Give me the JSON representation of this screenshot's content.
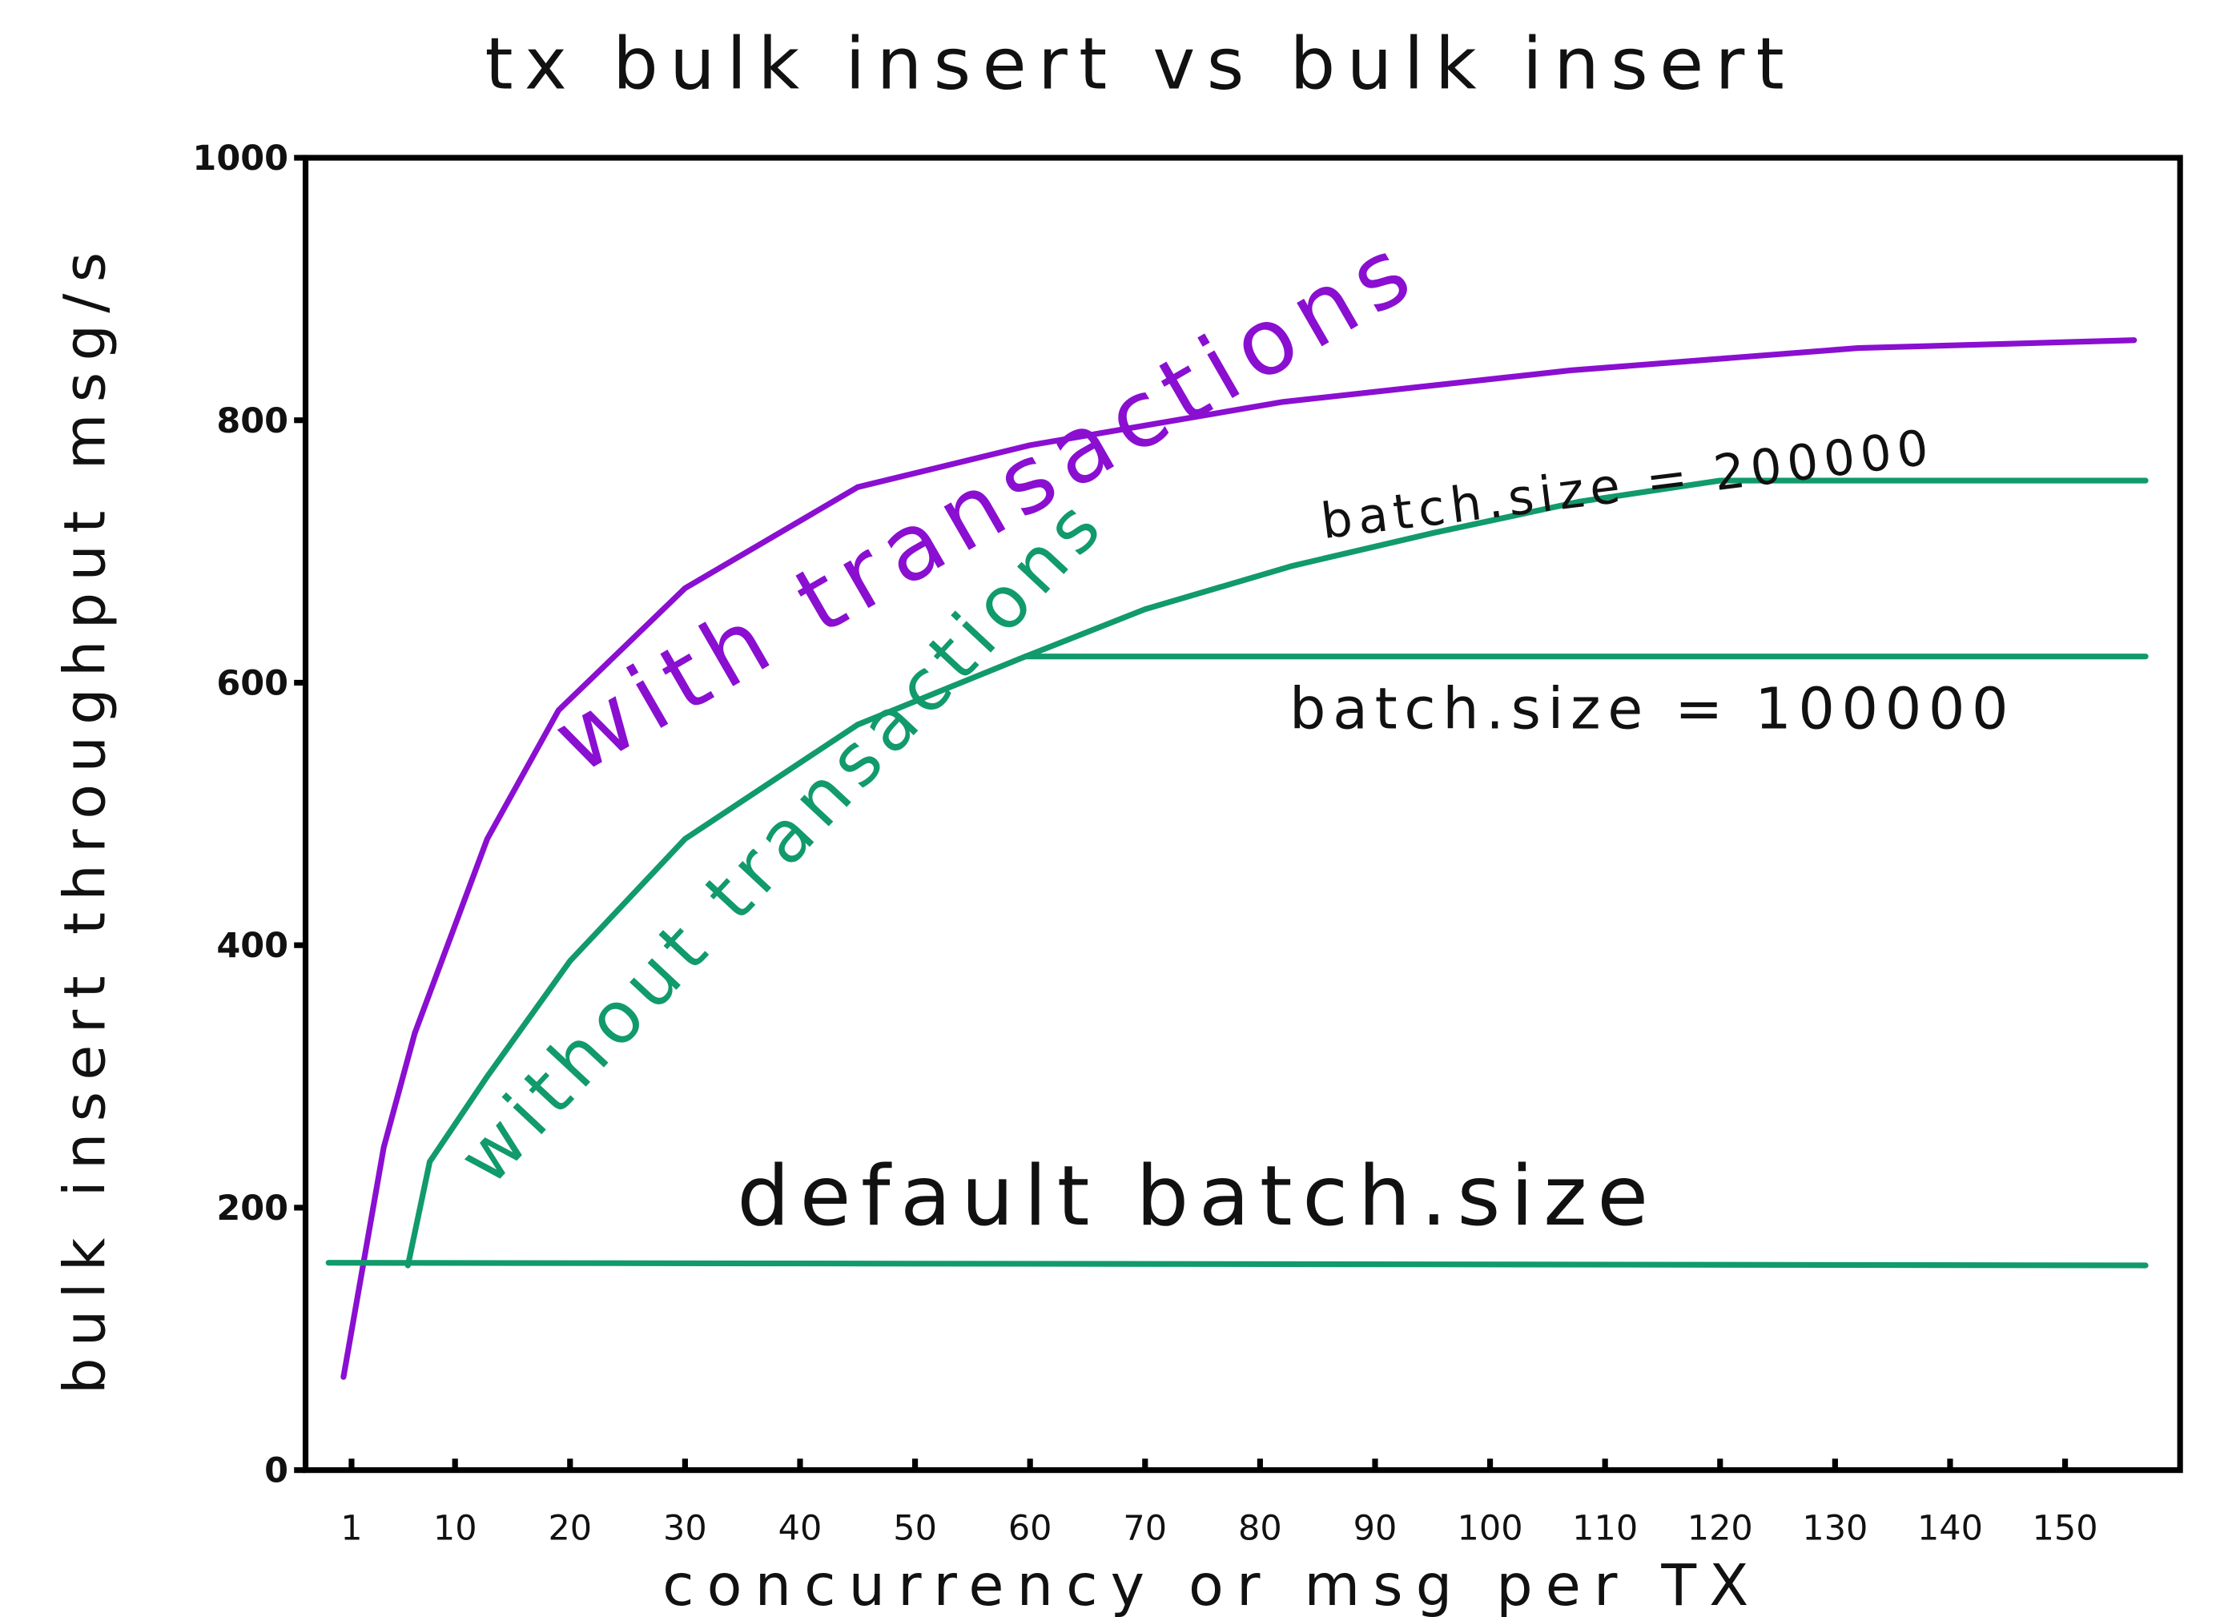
{
  "chart_data": {
    "type": "line",
    "title": "tx bulk insert vs bulk insert",
    "x_label": "concurrency or msg per TX",
    "y_label": "bulk insert throughput msg/s",
    "xlim": [
      -3,
      160
    ],
    "ylim": [
      0,
      1000
    ],
    "xticks": [
      1,
      10,
      20,
      30,
      40,
      50,
      60,
      70,
      80,
      90,
      100,
      110,
      120,
      130,
      140,
      150
    ],
    "yticks": [
      0,
      200,
      400,
      600,
      800,
      1000
    ],
    "series": [
      {
        "name": "with transactions",
        "color": "#8a0fd1",
        "x": [
          0.3,
          3.8,
          6.5,
          12.8,
          19,
          30,
          45,
          60,
          82,
          107,
          132,
          156
        ],
        "values": [
          71,
          246,
          333,
          481,
          579,
          672,
          749,
          781,
          814,
          838,
          855,
          861
        ]
      },
      {
        "name": "without transactions",
        "color": "#119a6c",
        "x": [
          5.9,
          7.8,
          12.8,
          20,
          30,
          45,
          59.6
        ],
        "values": [
          156,
          235,
          300,
          388,
          481,
          568,
          620
        ]
      },
      {
        "name": "batch.size = 200000",
        "color": "#119a6c",
        "x": [
          59.6,
          70,
          82.8,
          95,
          107.8,
          120,
          157
        ],
        "values": [
          620,
          656,
          689,
          714,
          738,
          754,
          754
        ]
      },
      {
        "name": "batch.size = 100000",
        "color": "#119a6c",
        "x": [
          59.6,
          157
        ],
        "values": [
          620,
          620
        ]
      },
      {
        "name": "default batch.size",
        "color": "#119a6c",
        "x": [
          -1,
          157
        ],
        "values": [
          158,
          156
        ]
      }
    ]
  }
}
